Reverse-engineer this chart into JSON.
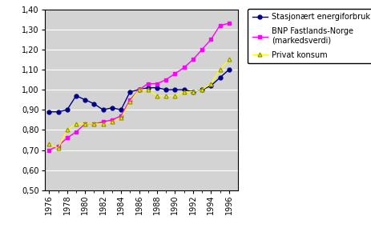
{
  "years": [
    1976,
    1977,
    1978,
    1979,
    1980,
    1981,
    1982,
    1983,
    1984,
    1985,
    1986,
    1987,
    1988,
    1989,
    1990,
    1991,
    1992,
    1993,
    1994,
    1995,
    1996
  ],
  "stasjonaert": [
    0.89,
    0.89,
    0.9,
    0.97,
    0.95,
    0.93,
    0.9,
    0.91,
    0.9,
    0.99,
    1.0,
    1.01,
    1.01,
    1.0,
    1.0,
    1.0,
    0.99,
    1.0,
    1.02,
    1.06,
    1.1
  ],
  "bnp": [
    0.7,
    0.72,
    0.76,
    0.79,
    0.83,
    0.83,
    0.84,
    0.85,
    0.87,
    0.95,
    1.0,
    1.03,
    1.03,
    1.05,
    1.08,
    1.11,
    1.15,
    1.2,
    1.25,
    1.32,
    1.33
  ],
  "privat": [
    0.73,
    0.71,
    0.8,
    0.83,
    0.83,
    0.83,
    0.83,
    0.84,
    0.86,
    0.94,
    1.0,
    1.0,
    0.97,
    0.97,
    0.97,
    0.99,
    0.99,
    1.0,
    1.03,
    1.1,
    1.15
  ],
  "ylim": [
    0.5,
    1.4
  ],
  "yticks": [
    0.5,
    0.6,
    0.7,
    0.8,
    0.9,
    1.0,
    1.1,
    1.2,
    1.3,
    1.4
  ],
  "xtick_years": [
    1976,
    1978,
    1980,
    1982,
    1984,
    1986,
    1988,
    1990,
    1992,
    1994,
    1996
  ],
  "xtick_labels": [
    "1976",
    "1978",
    "1980",
    "1982",
    "1984",
    "1986",
    "1988",
    "1990",
    "1992",
    "1994",
    "1996"
  ],
  "color_stasjonaert": "#00008B",
  "color_bnp": "#FF00FF",
  "color_privat": "#FFFF00",
  "legend_stasjonaert": "Stasjonært energiforbruk",
  "legend_bnp": "BNP Fastlands-Norge\n(markedsverdi)",
  "legend_privat": "Privat konsum",
  "plot_bg_color": "#D3D3D3",
  "fig_bg_color": "#FFFFFF",
  "marker_stasjonaert": "o",
  "marker_bnp": "s",
  "marker_privat": "^",
  "xlim_left": 1975.5,
  "xlim_right": 1997.0
}
